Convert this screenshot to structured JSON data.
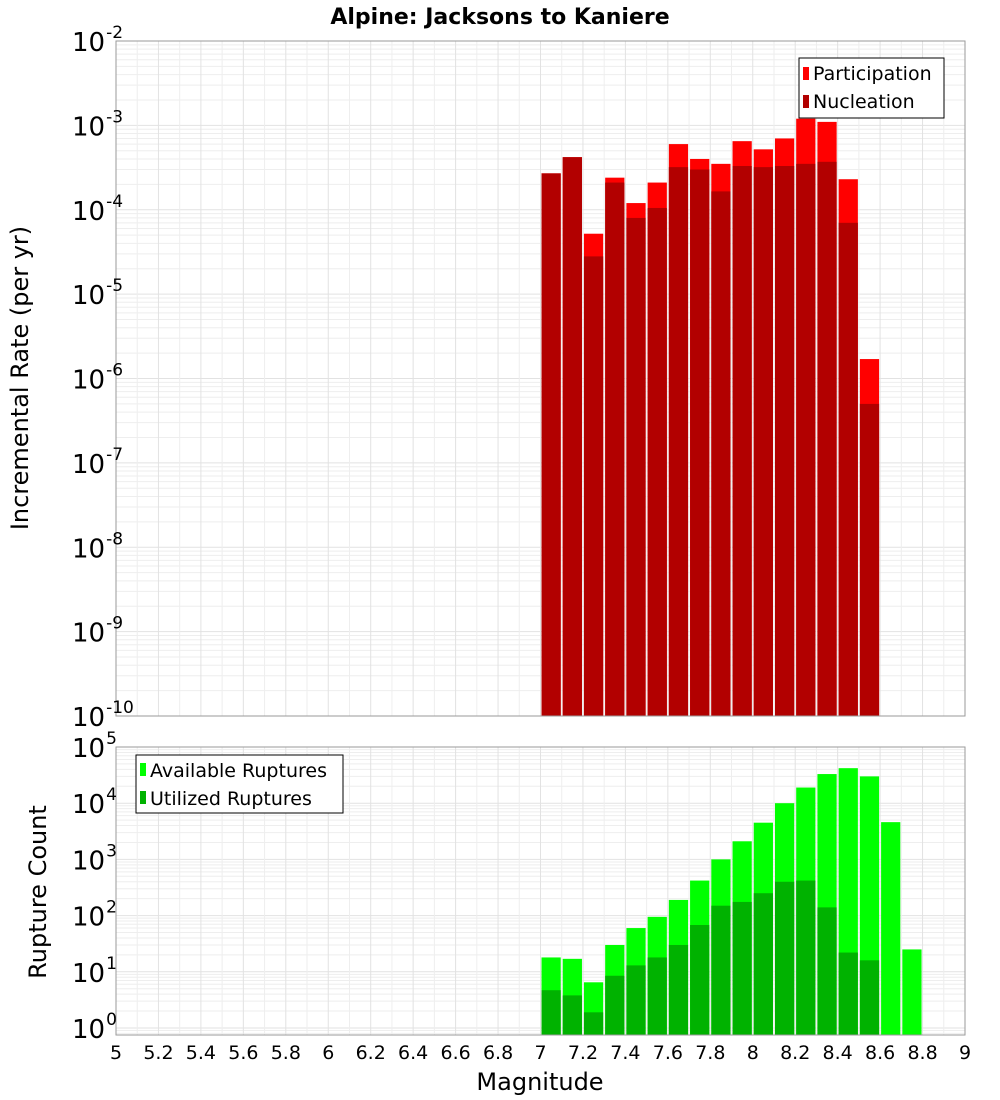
{
  "chart_data": [
    {
      "type": "bar",
      "title": "Alpine: Jacksons to Kaniere",
      "ylabel": "Incremental Rate (per yr)",
      "xlabel": "",
      "y_scale": "log",
      "ylim": [
        1e-10,
        0.01
      ],
      "xlim": [
        5,
        9
      ],
      "y_tick_exponents": [
        -10,
        -9,
        -8,
        -7,
        -6,
        -5,
        -4,
        -3,
        -2
      ],
      "legend_placement": "top-right",
      "bar_width": 0.1,
      "grid": true,
      "series": [
        {
          "name": "Participation",
          "color": "#ff0000",
          "x": [
            7.0,
            7.1,
            7.2,
            7.3,
            7.4,
            7.5,
            7.6,
            7.7,
            7.8,
            7.9,
            8.0,
            8.1,
            8.2,
            8.3,
            8.4,
            8.5
          ],
          "values": [
            0.00027,
            0.00042,
            5.2e-05,
            0.00024,
            0.00012,
            0.00021,
            0.0006,
            0.0004,
            0.00035,
            0.00065,
            0.00052,
            0.0007,
            0.0012,
            0.0011,
            0.00023,
            1.7e-06
          ]
        },
        {
          "name": "Nucleation",
          "color": "#b20000",
          "x": [
            7.0,
            7.1,
            7.2,
            7.3,
            7.4,
            7.5,
            7.6,
            7.7,
            7.8,
            7.9,
            8.0,
            8.1,
            8.2,
            8.3,
            8.4,
            8.5
          ],
          "values": [
            0.00027,
            0.00042,
            2.8e-05,
            0.00021,
            8e-05,
            0.000105,
            0.00032,
            0.0003,
            0.000165,
            0.00033,
            0.00032,
            0.00033,
            0.00035,
            0.00037,
            7e-05,
            5e-07
          ]
        }
      ]
    },
    {
      "type": "bar",
      "title": "",
      "ylabel": "Rupture Count",
      "xlabel": "Magnitude",
      "y_scale": "log",
      "ylim": [
        0.75,
        100000
      ],
      "xlim": [
        5,
        9
      ],
      "y_tick_exponents": [
        0,
        1,
        2,
        3,
        4,
        5
      ],
      "x_ticks": [
        "5",
        "5.2",
        "5.4",
        "5.6",
        "5.8",
        "6",
        "6.2",
        "6.4",
        "6.6",
        "6.8",
        "7",
        "7.2",
        "7.4",
        "7.6",
        "7.8",
        "8",
        "8.2",
        "8.4",
        "8.6",
        "8.8",
        "9"
      ],
      "legend_placement": "top-left",
      "bar_width": 0.1,
      "grid": true,
      "series": [
        {
          "name": "Available Ruptures",
          "color": "#00ff00",
          "x": [
            7.0,
            7.1,
            7.2,
            7.3,
            7.4,
            7.5,
            7.6,
            7.7,
            7.8,
            7.9,
            8.0,
            8.1,
            8.2,
            8.3,
            8.4,
            8.5,
            8.6,
            8.7
          ],
          "values": [
            18,
            17,
            6.5,
            30,
            60,
            95,
            190,
            420,
            1000,
            2100,
            4500,
            10000,
            19000,
            33000,
            42000,
            30000,
            4600,
            25
          ]
        },
        {
          "name": "Utilized Ruptures",
          "color": "#00b200",
          "x": [
            7.0,
            7.1,
            7.2,
            7.3,
            7.4,
            7.5,
            7.6,
            7.7,
            7.8,
            7.9,
            8.0,
            8.1,
            8.2,
            8.3,
            8.4,
            8.5
          ],
          "values": [
            4.7,
            3.8,
            1.9,
            8.5,
            13,
            18,
            30,
            68,
            150,
            175,
            250,
            400,
            420,
            140,
            22,
            16
          ]
        }
      ]
    }
  ]
}
